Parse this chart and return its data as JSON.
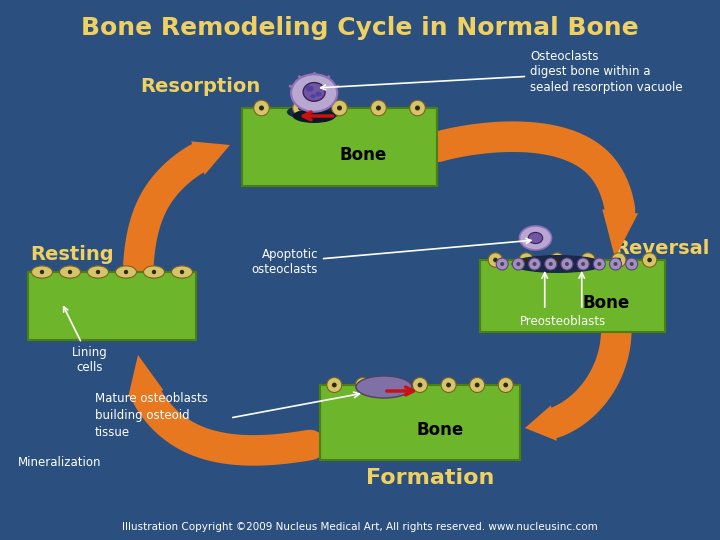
{
  "title": "Bone Remodeling Cycle in Normal Bone",
  "bg_color": "#2B5080",
  "title_color": "#F0D060",
  "label_color": "#F0D060",
  "white": "#FFFFFF",
  "black": "#000000",
  "orange": "#E87820",
  "green_bone": "#6DB52A",
  "green_dark": "#4A8010",
  "yellow_cell": "#D4C46A",
  "purple_light": "#B8A8D0",
  "purple_dark": "#7055A0",
  "purple_mid": "#9070B8",
  "red_arrow": "#CC1010",
  "footer": "Illustration Copyright ©2009 Nucleus Medical Art, All rights reserved. www.nucleusinc.com",
  "stage_resorption": "Resorption",
  "stage_reversal": "Reversal",
  "stage_formation": "Formation",
  "stage_resting": "Resting",
  "ann_osteoclasts": "Osteoclasts\ndigest bone within a\nsealed resorption vacuole",
  "ann_apoptotic": "Apoptotic\nosteoclasts",
  "ann_lining": "Lining\ncells",
  "ann_preosteoblasts": "Preosteoblasts",
  "ann_mature": "Mature osteoblasts\nbuilding osteoid\ntissue",
  "ann_mineralization": "Mineralization"
}
